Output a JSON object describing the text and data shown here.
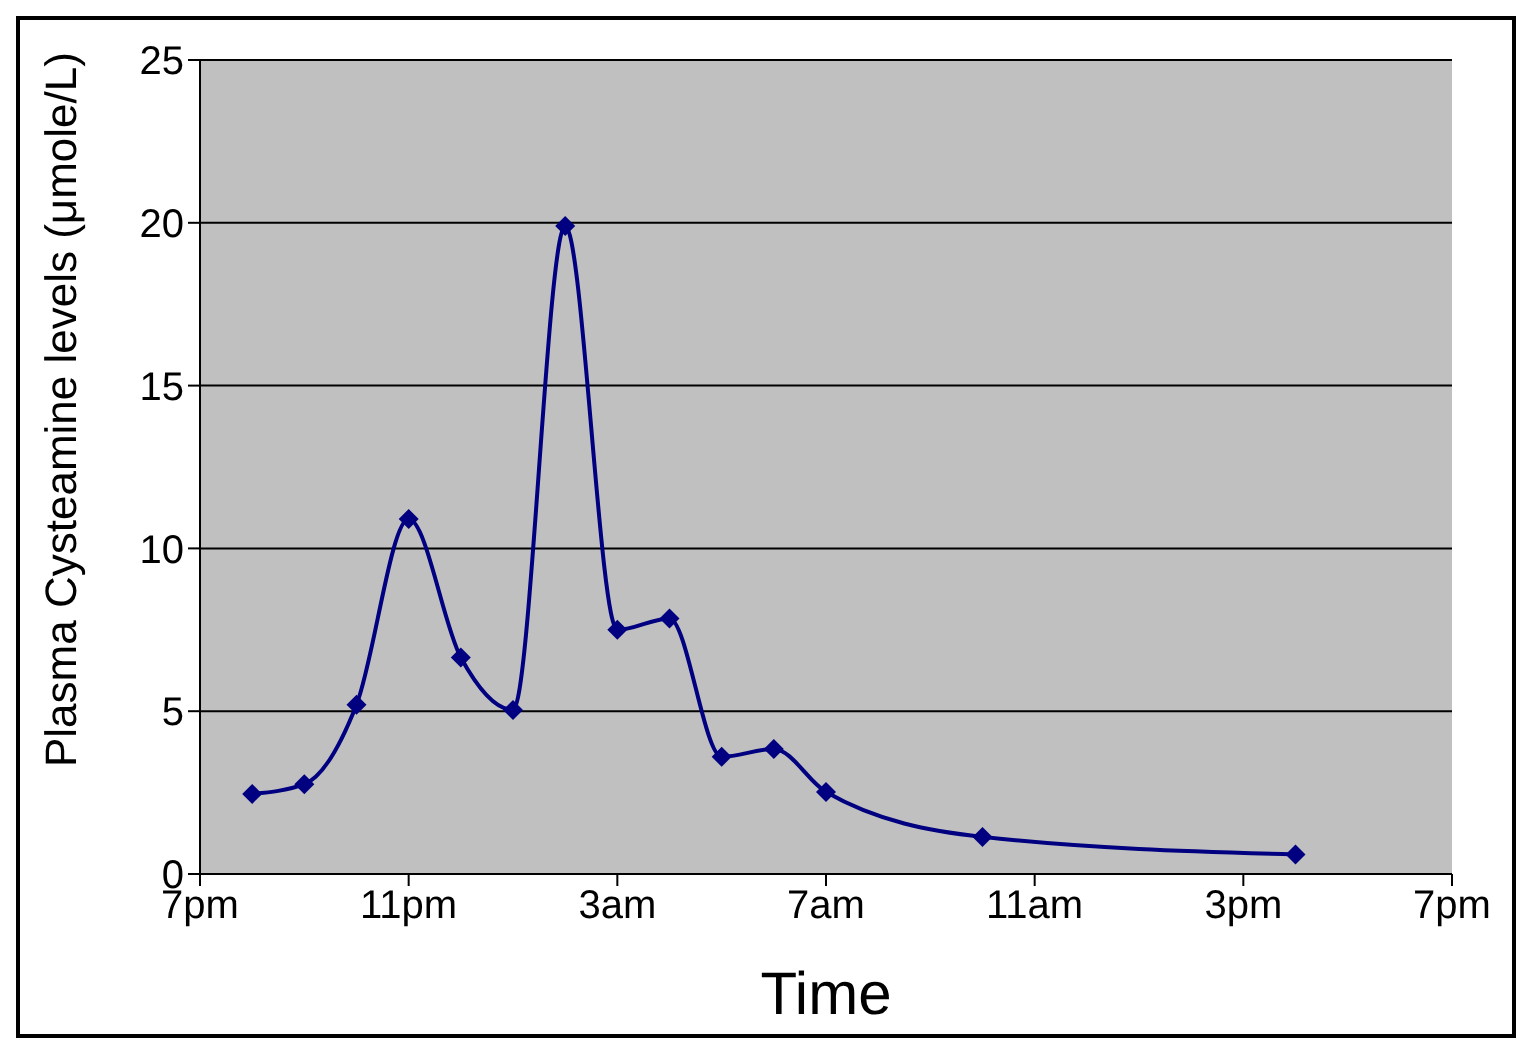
{
  "chart_data": {
    "type": "line",
    "xlabel": "Time",
    "ylabel": "Plasma Cysteamine levels (μmole/L)",
    "x": [
      "--01-01T20:00",
      "--01-01T21:00",
      "--01-01T22:00",
      "--01-01T23:00",
      "--01-02T00:00",
      "--01-02T01:00",
      "--01-02T02:00",
      "--01-02T03:00",
      "--01-02T04:00",
      "--01-02T05:00",
      "--01-02T06:00",
      "--01-02T07:00",
      "--01-02T10:00",
      "--01-02T16:00"
    ],
    "series": [
      {
        "color": "#000080",
        "values": [
          2.46,
          2.76,
          5.2,
          10.9,
          6.65,
          5.04,
          19.9,
          7.5,
          7.85,
          3.6,
          3.84,
          2.52,
          1.14,
          0.6
        ]
      }
    ],
    "xlim": [
      "--01-01T19:00",
      "--01-02T19:00"
    ],
    "xticks": [
      {
        "value": "--01-01T19:00",
        "label": "7pm"
      },
      {
        "value": "--01-01T23:00",
        "label": "11pm"
      },
      {
        "value": "--01-02T03:00",
        "label": "3am"
      },
      {
        "value": "--01-02T07:00",
        "label": "7am"
      },
      {
        "value": "--01-02T11:00",
        "label": "11am"
      },
      {
        "value": "--01-02T15:00",
        "label": "3pm"
      },
      {
        "value": "--01-02T19:00",
        "label": "7pm"
      }
    ],
    "ylim": [
      0,
      25
    ],
    "yticks": [
      0,
      5,
      10,
      15,
      20,
      25
    ],
    "grid": "y",
    "marker": "diamond",
    "line_style": "solid"
  }
}
